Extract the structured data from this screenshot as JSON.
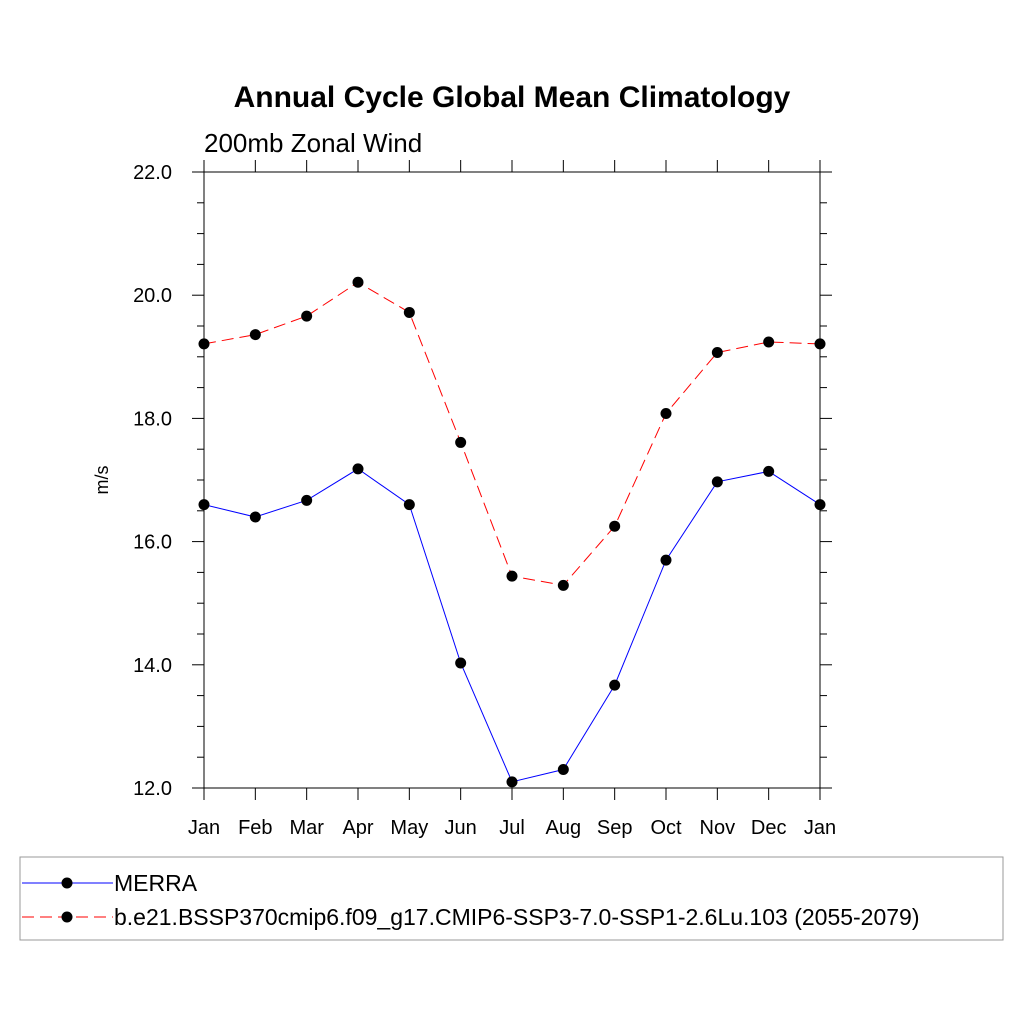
{
  "chart_data": {
    "type": "line",
    "title": "Annual Cycle Global Mean Climatology",
    "subtitle": "200mb Zonal Wind",
    "xlabel": "",
    "ylabel": "m/s",
    "categories": [
      "Jan",
      "Feb",
      "Mar",
      "Apr",
      "May",
      "Jun",
      "Jul",
      "Aug",
      "Sep",
      "Oct",
      "Nov",
      "Dec",
      "Jan"
    ],
    "ylim": [
      12.0,
      22.0
    ],
    "yticks": [
      "12.0",
      "14.0",
      "16.0",
      "18.0",
      "20.0",
      "22.0"
    ],
    "grid": false,
    "legend_position": "bottom",
    "series": [
      {
        "name": "MERRA",
        "color": "#0000ff",
        "line_style": "solid",
        "marker": "filled-circle",
        "values": [
          16.6,
          16.4,
          16.67,
          17.18,
          16.6,
          14.03,
          12.1,
          12.3,
          13.67,
          15.7,
          16.97,
          17.14,
          16.6
        ]
      },
      {
        "name": "b.e21.BSSP370cmip6.f09_g17.CMIP6-SSP3-7.0-SSP1-2.6Lu.103 (2055-2079)",
        "color": "#ff0000",
        "line_style": "dashed",
        "marker": "filled-circle",
        "values": [
          19.21,
          19.36,
          19.66,
          20.21,
          19.72,
          17.61,
          15.44,
          15.29,
          16.25,
          18.08,
          19.07,
          19.24,
          19.21
        ]
      }
    ]
  }
}
